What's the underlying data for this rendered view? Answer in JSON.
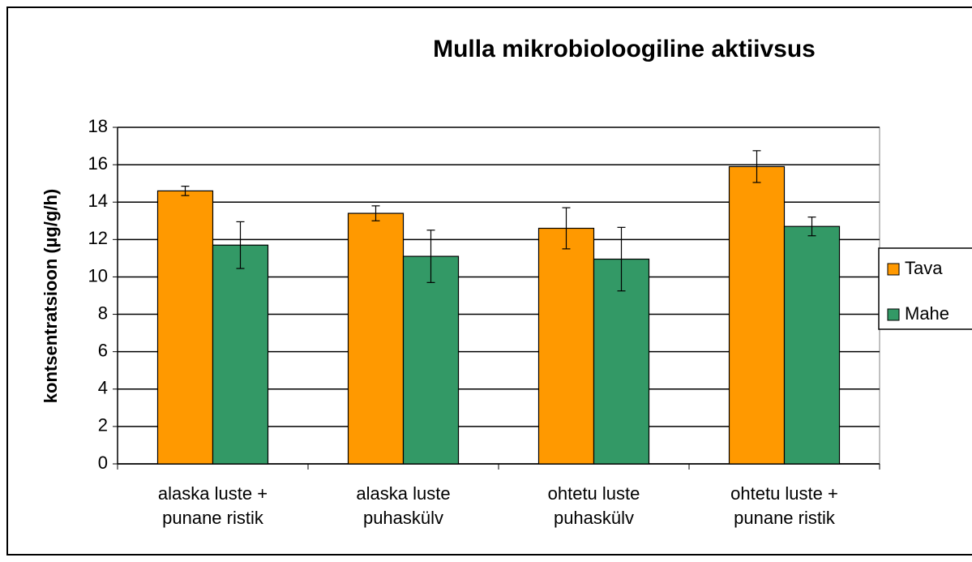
{
  "chart_data": {
    "type": "bar",
    "title": "Mulla mikrobioloogiline aktiivsus",
    "y_label": "kontsentratsioon (µg/g/h)",
    "categories": [
      [
        "alaska luste +",
        "punane ristik"
      ],
      [
        "alaska luste",
        "puhaskülv"
      ],
      [
        "ohtetu luste",
        "puhaskülv"
      ],
      [
        "ohtetu luste +",
        "punane ristik"
      ]
    ],
    "series": [
      {
        "name": "Tava",
        "color": "#ff9900",
        "values": [
          14.6,
          13.4,
          12.6,
          15.9
        ],
        "errors": [
          0.25,
          0.4,
          1.1,
          0.85
        ]
      },
      {
        "name": "Mahe",
        "color": "#339966",
        "values": [
          11.7,
          11.1,
          10.95,
          12.7
        ],
        "errors": [
          1.25,
          1.4,
          1.7,
          0.5
        ]
      }
    ],
    "ylim": [
      0,
      18
    ],
    "yticks": [
      0,
      2,
      4,
      6,
      8,
      10,
      12,
      14,
      16,
      18
    ],
    "grid": true,
    "legend": "right"
  }
}
